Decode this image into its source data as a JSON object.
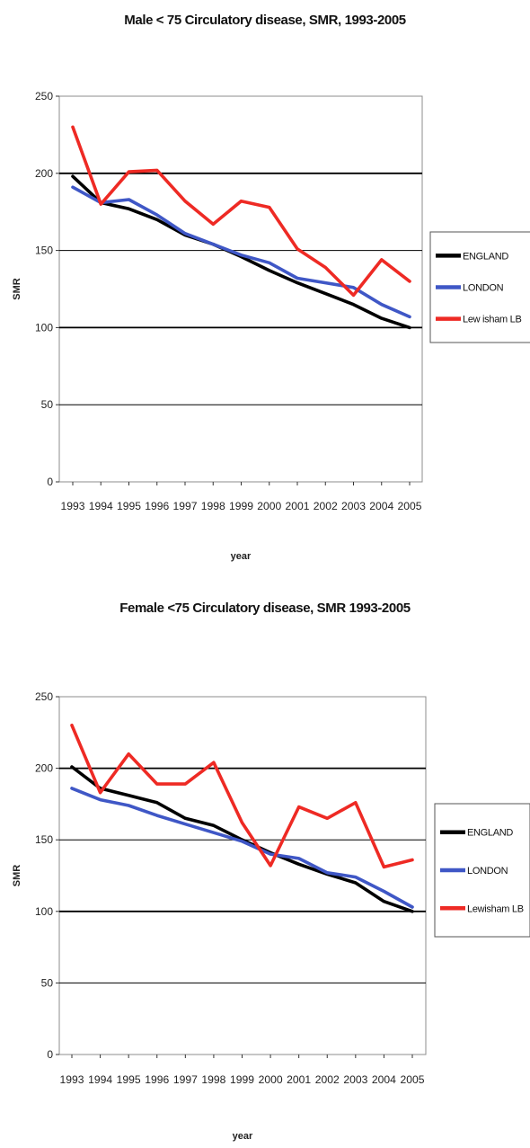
{
  "colors": {
    "ENGLAND": "#000000",
    "LONDON": "#3f57c6",
    "Lewisham LB": "#ee2a24",
    "gridline": "#000000",
    "plot_border": "#8c8c8c"
  },
  "chart_data": [
    {
      "type": "line",
      "title": "Male < 75 Circulatory disease, SMR, 1993-2005",
      "xlabel": "year",
      "ylabel": "SMR",
      "ylim": [
        0,
        250
      ],
      "yticks": [
        0,
        50,
        100,
        150,
        200,
        250
      ],
      "grid": true,
      "legend_position": "right",
      "x": [
        "1993",
        "1994",
        "1995",
        "1996",
        "1997",
        "1998",
        "1999",
        "2000",
        "2001",
        "2002",
        "2003",
        "2004",
        "2005"
      ],
      "series": [
        {
          "name": "ENGLAND",
          "legend_label": "ENGLAND",
          "values": [
            198,
            181,
            177,
            170,
            160,
            154,
            146,
            137,
            129,
            122,
            115,
            106,
            100
          ]
        },
        {
          "name": "LONDON",
          "legend_label": "LONDON",
          "values": [
            191,
            181,
            183,
            173,
            161,
            154,
            147,
            142,
            132,
            129,
            126,
            115,
            107
          ]
        },
        {
          "name": "Lewisham LB",
          "legend_label": "Lew isham LB",
          "values": [
            230,
            180,
            201,
            202,
            182,
            167,
            182,
            178,
            151,
            139,
            121,
            144,
            130
          ]
        }
      ]
    },
    {
      "type": "line",
      "title": "Female <75 Circulatory disease, SMR 1993-2005",
      "xlabel": "year",
      "ylabel": "SMR",
      "ylim": [
        0,
        250
      ],
      "yticks": [
        0,
        50,
        100,
        150,
        200,
        250
      ],
      "grid": true,
      "legend_position": "right",
      "x": [
        "1993",
        "1994",
        "1995",
        "1996",
        "1997",
        "1998",
        "1999",
        "2000",
        "2001",
        "2002",
        "2003",
        "2004",
        "2005"
      ],
      "series": [
        {
          "name": "ENGLAND",
          "legend_label": "ENGLAND",
          "values": [
            201,
            186,
            181,
            176,
            165,
            160,
            150,
            141,
            133,
            126,
            120,
            107,
            100
          ]
        },
        {
          "name": "LONDON",
          "legend_label": "LONDON",
          "values": [
            186,
            178,
            174,
            167,
            161,
            155,
            149,
            140,
            137,
            127,
            124,
            114,
            103
          ]
        },
        {
          "name": "Lewisham LB",
          "legend_label": "Lewisham LB",
          "values": [
            230,
            183,
            210,
            189,
            189,
            204,
            162,
            132,
            173,
            165,
            176,
            131,
            136
          ]
        }
      ]
    }
  ]
}
